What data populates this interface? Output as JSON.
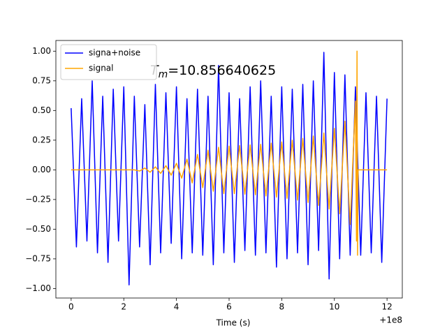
{
  "chart_data": {
    "type": "line",
    "xlabel": "Time (s)",
    "x_offset_label": "+1e8",
    "annotation": {
      "symbol": "T",
      "subscript": "m",
      "text": "=10.856640625"
    },
    "xlim": [
      -0.58,
      12.58
    ],
    "ylim": [
      -1.08,
      1.09
    ],
    "xticks": [
      0,
      2,
      4,
      6,
      8,
      10,
      12
    ],
    "yticks": [
      {
        "value": -1,
        "label": "−1.00"
      },
      {
        "value": -0.75,
        "label": "−0.75"
      },
      {
        "value": -0.5,
        "label": "−0.50"
      },
      {
        "value": -0.25,
        "label": "−0.25"
      },
      {
        "value": 0,
        "label": "0.00"
      },
      {
        "value": 0.25,
        "label": "0.25"
      },
      {
        "value": 0.5,
        "label": "0.50"
      },
      {
        "value": 0.75,
        "label": "0.75"
      },
      {
        "value": 1,
        "label": "1.00"
      }
    ],
    "grid": false,
    "legend": "upper left",
    "series": [
      {
        "name": "signa+noise",
        "color": "#0000ff",
        "x": [
          0,
          0.2,
          0.4,
          0.6,
          0.8,
          1,
          1.2,
          1.4,
          1.6,
          1.8,
          2,
          2.2,
          2.4,
          2.6,
          2.8,
          3,
          3.2,
          3.4,
          3.6,
          3.8,
          4,
          4.2,
          4.4,
          4.6,
          4.8,
          5,
          5.2,
          5.4,
          5.6,
          5.8,
          6,
          6.2,
          6.4,
          6.6,
          6.8,
          7,
          7.2,
          7.4,
          7.6,
          7.8,
          8,
          8.2,
          8.4,
          8.6,
          8.8,
          9,
          9.2,
          9.4,
          9.6,
          9.8,
          10,
          10.2,
          10.4,
          10.6,
          10.8,
          11,
          11.2,
          11.4,
          11.6,
          11.8,
          12
        ],
        "values": [
          0.52,
          -0.65,
          0.6,
          -0.6,
          0.75,
          -0.7,
          0.62,
          -0.78,
          0.68,
          -0.6,
          0.7,
          -0.97,
          0.62,
          -0.65,
          0.55,
          -0.8,
          0.72,
          -0.7,
          0.65,
          -0.62,
          0.7,
          -0.75,
          0.6,
          -0.7,
          0.68,
          -0.72,
          0.62,
          -0.8,
          0.88,
          -0.7,
          0.65,
          -0.78,
          0.6,
          -0.68,
          0.7,
          -0.72,
          0.75,
          -0.7,
          0.62,
          -0.82,
          0.7,
          -0.75,
          0.68,
          -0.7,
          0.72,
          -0.8,
          0.75,
          -0.68,
          0.99,
          -0.92,
          0.82,
          -0.75,
          0.8,
          -0.72,
          0.7,
          -0.72,
          0.65,
          -0.7,
          0.62,
          -0.78,
          0.6
        ]
      },
      {
        "name": "signal",
        "color": "#ffa500",
        "x": [
          0,
          0.2,
          0.4,
          0.6,
          0.8,
          1,
          1.2,
          1.4,
          1.6,
          1.8,
          2,
          2.2,
          2.4,
          2.6,
          2.8,
          3,
          3.2,
          3.4,
          3.6,
          3.8,
          4,
          4.2,
          4.4,
          4.6,
          4.8,
          5,
          5.2,
          5.4,
          5.6,
          5.8,
          6,
          6.2,
          6.4,
          6.6,
          6.8,
          7,
          7.2,
          7.4,
          7.6,
          7.8,
          8,
          8.2,
          8.4,
          8.6,
          8.8,
          9,
          9.2,
          9.4,
          9.6,
          9.8,
          10,
          10.2,
          10.4,
          10.6,
          10.8,
          10.84,
          10.86,
          10.88,
          10.9,
          12
        ],
        "values": [
          0,
          0,
          0,
          0,
          0,
          0,
          0,
          0,
          0,
          0,
          0,
          0,
          0,
          -0.01,
          0.015,
          -0.02,
          0.025,
          -0.03,
          0.035,
          -0.045,
          0.055,
          -0.07,
          0.09,
          -0.11,
          0.13,
          -0.15,
          0.165,
          -0.18,
          0.19,
          -0.2,
          0.2,
          -0.2,
          0.205,
          -0.205,
          0.21,
          -0.21,
          0.215,
          -0.22,
          0.225,
          -0.23,
          0.235,
          -0.24,
          0.25,
          -0.255,
          0.265,
          -0.275,
          0.285,
          -0.3,
          0.31,
          -0.33,
          0.35,
          -0.37,
          0.41,
          -0.46,
          0.58,
          -0.6,
          1,
          -0.72,
          0,
          0
        ]
      }
    ]
  }
}
